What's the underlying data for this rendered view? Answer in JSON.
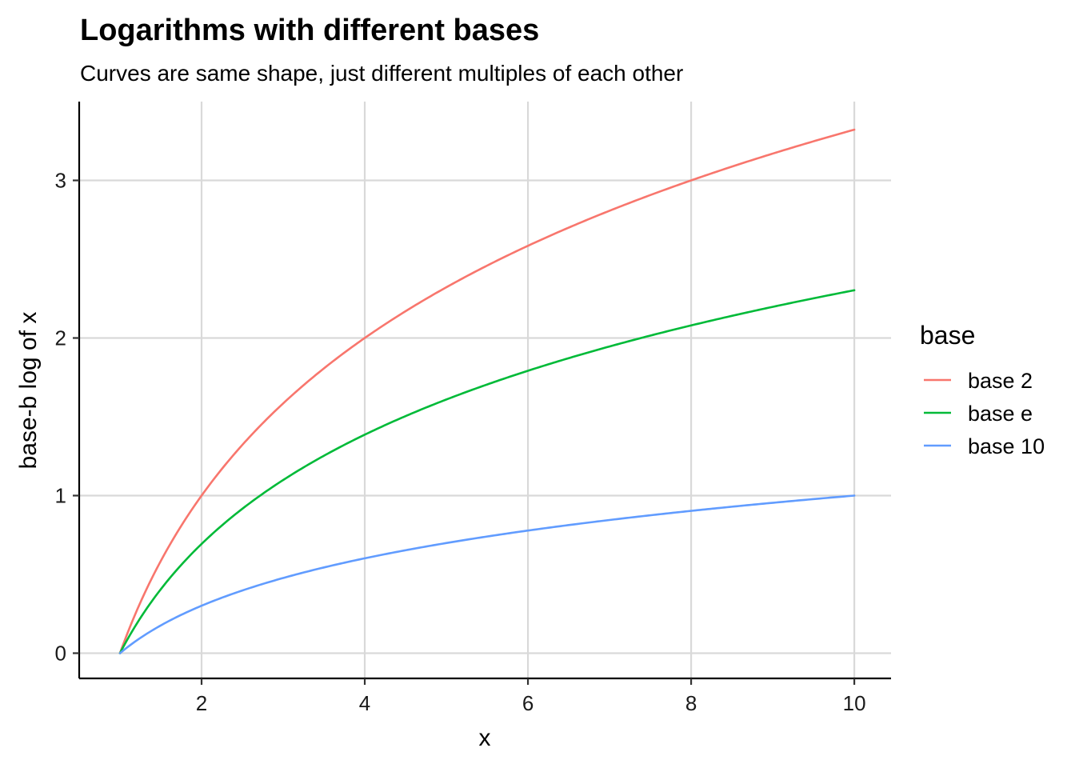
{
  "chart_data": {
    "type": "line",
    "title": "Logarithms with different bases",
    "subtitle": "Curves are same shape, just different multiples of each other",
    "xlabel": "x",
    "ylabel": "base-b log of x",
    "xlim": [
      0.5,
      10.45
    ],
    "ylim": [
      -0.16,
      3.5
    ],
    "x_ticks": [
      2,
      4,
      6,
      8,
      10
    ],
    "y_ticks": [
      0,
      1,
      2,
      3
    ],
    "x_tick_labels": [
      "2",
      "4",
      "6",
      "8",
      "10"
    ],
    "y_tick_labels": [
      "0",
      "1",
      "2",
      "3"
    ],
    "grid": true,
    "legend": {
      "title": "base",
      "position": "right"
    },
    "x": [
      1,
      1.5,
      2,
      2.5,
      3,
      3.5,
      4,
      4.5,
      5,
      5.5,
      6,
      6.5,
      7,
      7.5,
      8,
      8.5,
      9,
      9.5,
      10
    ],
    "series": [
      {
        "name": "base 2",
        "color": "#F8766D",
        "values": [
          0,
          0.585,
          1,
          1.322,
          1.585,
          1.807,
          2,
          2.17,
          2.322,
          2.459,
          2.585,
          2.7,
          2.807,
          2.907,
          3,
          3.087,
          3.17,
          3.248,
          3.322
        ]
      },
      {
        "name": "base e",
        "color": "#00BA38",
        "values": [
          0,
          0.405,
          0.693,
          0.916,
          1.099,
          1.253,
          1.386,
          1.504,
          1.609,
          1.705,
          1.792,
          1.872,
          1.946,
          2.015,
          2.079,
          2.14,
          2.197,
          2.251,
          2.303
        ]
      },
      {
        "name": "base 10",
        "color": "#619CFF",
        "values": [
          0,
          0.176,
          0.301,
          0.398,
          0.477,
          0.544,
          0.602,
          0.653,
          0.699,
          0.74,
          0.778,
          0.813,
          0.845,
          0.875,
          0.903,
          0.929,
          0.954,
          0.978,
          1
        ]
      }
    ]
  }
}
